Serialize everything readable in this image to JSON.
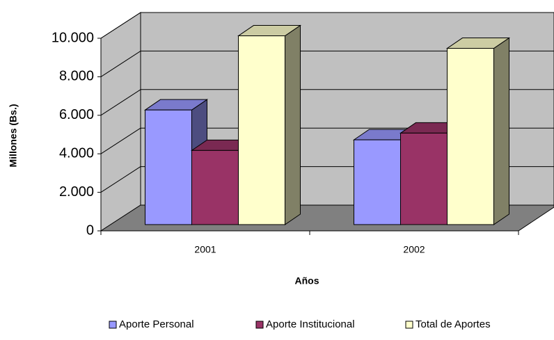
{
  "chart_data": {
    "type": "bar3d",
    "categories": [
      "2001",
      "2002"
    ],
    "series": [
      {
        "name": "Aporte Personal",
        "color": "#9999ff",
        "values": [
          5950,
          4400
        ]
      },
      {
        "name": "Aporte Institucional",
        "color": "#993366",
        "values": [
          3850,
          4750
        ]
      },
      {
        "name": "Total de Aportes",
        "color": "#ffffcc",
        "values": [
          9800,
          9150
        ]
      }
    ],
    "ylim": [
      0,
      10000
    ],
    "yticks": [
      0,
      {
        "value": 2000,
        "label": "2.000"
      },
      {
        "value": 4000,
        "label": "4.000"
      },
      {
        "value": 6000,
        "label": "6.000"
      },
      {
        "value": 8000,
        "label": "8.000"
      },
      {
        "value": 10000,
        "label": "10.000"
      }
    ],
    "x_label": "Años",
    "y_label": "Millones (Bs.)",
    "grid": true,
    "legend": "bottom"
  }
}
